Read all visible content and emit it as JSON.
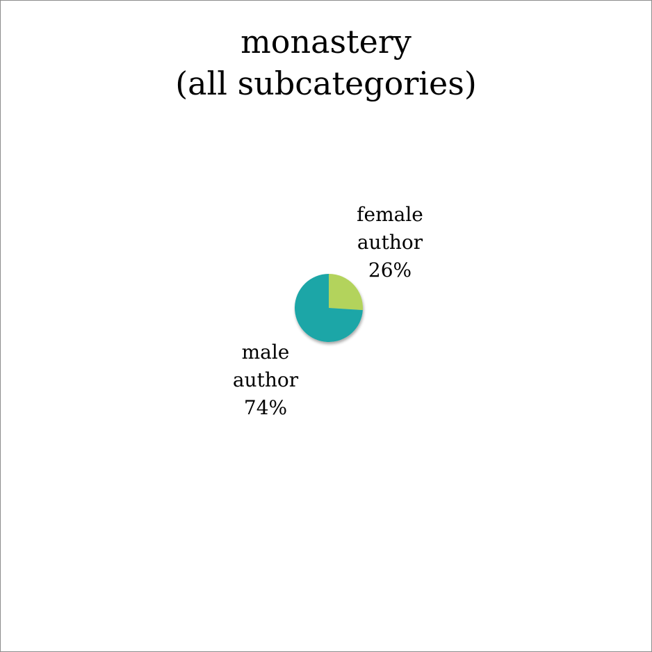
{
  "chart_data": {
    "type": "pie",
    "title": [
      "monastery",
      "(all subcategories)"
    ],
    "slices": [
      {
        "label": [
          "female",
          "author"
        ],
        "percent_label": "26%",
        "value": 26,
        "color": "#b3d35b"
      },
      {
        "label": [
          "male",
          "author"
        ],
        "percent_label": "74%",
        "value": 74,
        "color": "#1ba6a7"
      }
    ],
    "start_angle_deg": 0,
    "direction": "clockwise",
    "legend": "none"
  }
}
